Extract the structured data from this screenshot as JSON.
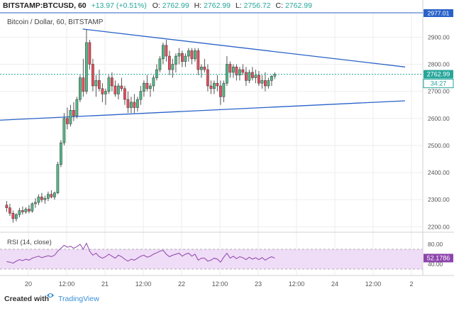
{
  "header": {
    "symbol": "BITSTAMP:BTCUSD, 60",
    "change": "+13.97 (+0.51%)",
    "o_label": "O:",
    "o_value": "2762.99",
    "h_label": "H:",
    "h_value": "2762.99",
    "l_label": "L:",
    "l_value": "2756.72",
    "c_label": "C:",
    "c_value": "2762.99"
  },
  "legend_title": "Bitcoin / Dollar, 60, BITSTAMP",
  "last_price_label": "2762.99",
  "countdown_label": "34:27",
  "top_price_label": "2977.01",
  "rsi": {
    "label": "RSI (14, close)",
    "value_label": "52.1786"
  },
  "footer": {
    "created_with": "Created with",
    "brand": "TradingView"
  },
  "colors": {
    "up": "#53b987",
    "down": "#eb4d5c",
    "trendline": "#2962c8",
    "last_price": "#26a69a",
    "rsi_line": "#8e44ad",
    "rsi_band": "#efdcf6",
    "axis_text": "#555555",
    "grid": "#eeeeee",
    "top_price": "#2962c8"
  },
  "chart_data": [
    {
      "type": "candlestick",
      "title": "Bitcoin / Dollar, 60, BITSTAMP",
      "y_ticks": [
        2200,
        2300,
        2400,
        2500,
        2600,
        2700,
        2800,
        2900
      ],
      "ylim": [
        2180,
        2990
      ],
      "x_ticks": [
        {
          "label": "20",
          "pos": 0
        },
        {
          "label": "12:00",
          "pos": 12
        },
        {
          "label": "21",
          "pos": 24
        },
        {
          "label": "12:00",
          "pos": 36
        },
        {
          "label": "22",
          "pos": 48
        },
        {
          "label": "12:00",
          "pos": 60
        },
        {
          "label": "23",
          "pos": 72
        },
        {
          "label": "12:00",
          "pos": 84
        },
        {
          "label": "24",
          "pos": 96
        },
        {
          "label": "12:00",
          "pos": 108
        },
        {
          "label": "2",
          "pos": 120
        }
      ],
      "trendlines": [
        {
          "name": "resistance",
          "points": [
            [
              25,
              2930
            ],
            [
              126,
              2790
            ]
          ]
        },
        {
          "name": "support",
          "points": [
            [
              -7,
              2590
            ],
            [
              126,
              2665
            ]
          ]
        }
      ],
      "last_price": 2762.99,
      "candles": [
        [
          2280,
          2295,
          2255,
          2270
        ],
        [
          2270,
          2285,
          2240,
          2250
        ],
        [
          2250,
          2260,
          2215,
          2230
        ],
        [
          2230,
          2250,
          2220,
          2245
        ],
        [
          2245,
          2270,
          2235,
          2260
        ],
        [
          2260,
          2275,
          2245,
          2255
        ],
        [
          2255,
          2272,
          2248,
          2265
        ],
        [
          2265,
          2280,
          2250,
          2258
        ],
        [
          2258,
          2290,
          2252,
          2285
        ],
        [
          2285,
          2305,
          2270,
          2290
        ],
        [
          2290,
          2320,
          2280,
          2310
        ],
        [
          2310,
          2325,
          2290,
          2300
        ],
        [
          2300,
          2315,
          2285,
          2305
        ],
        [
          2305,
          2330,
          2295,
          2320
        ],
        [
          2320,
          2335,
          2305,
          2310
        ],
        [
          2310,
          2330,
          2300,
          2325
        ],
        [
          2325,
          2440,
          2320,
          2430
        ],
        [
          2430,
          2520,
          2420,
          2510
        ],
        [
          2510,
          2620,
          2500,
          2600
        ],
        [
          2600,
          2640,
          2560,
          2580
        ],
        [
          2580,
          2650,
          2570,
          2630
        ],
        [
          2630,
          2660,
          2590,
          2610
        ],
        [
          2610,
          2680,
          2600,
          2670
        ],
        [
          2670,
          2760,
          2660,
          2750
        ],
        [
          2750,
          2820,
          2680,
          2700
        ],
        [
          2700,
          2930,
          2690,
          2880
        ],
        [
          2880,
          2890,
          2780,
          2800
        ],
        [
          2800,
          2820,
          2700,
          2720
        ],
        [
          2720,
          2760,
          2680,
          2740
        ],
        [
          2740,
          2780,
          2700,
          2710
        ],
        [
          2710,
          2730,
          2660,
          2690
        ],
        [
          2690,
          2710,
          2650,
          2700
        ],
        [
          2700,
          2760,
          2690,
          2750
        ],
        [
          2750,
          2770,
          2700,
          2720
        ],
        [
          2720,
          2740,
          2680,
          2690
        ],
        [
          2690,
          2730,
          2670,
          2720
        ],
        [
          2720,
          2750,
          2700,
          2710
        ],
        [
          2710,
          2720,
          2650,
          2670
        ],
        [
          2670,
          2700,
          2620,
          2640
        ],
        [
          2640,
          2680,
          2620,
          2660
        ],
        [
          2660,
          2690,
          2620,
          2640
        ],
        [
          2640,
          2680,
          2625,
          2670
        ],
        [
          2670,
          2720,
          2650,
          2700
        ],
        [
          2700,
          2740,
          2680,
          2730
        ],
        [
          2730,
          2760,
          2700,
          2710
        ],
        [
          2710,
          2730,
          2680,
          2720
        ],
        [
          2720,
          2760,
          2700,
          2750
        ],
        [
          2750,
          2800,
          2740,
          2780
        ],
        [
          2780,
          2830,
          2770,
          2820
        ],
        [
          2820,
          2880,
          2800,
          2870
        ],
        [
          2870,
          2890,
          2810,
          2830
        ],
        [
          2830,
          2850,
          2760,
          2780
        ],
        [
          2780,
          2820,
          2750,
          2800
        ],
        [
          2800,
          2840,
          2770,
          2830
        ],
        [
          2830,
          2860,
          2800,
          2840
        ],
        [
          2840,
          2850,
          2790,
          2810
        ],
        [
          2810,
          2840,
          2790,
          2830
        ],
        [
          2830,
          2860,
          2810,
          2850
        ],
        [
          2850,
          2860,
          2800,
          2820
        ],
        [
          2820,
          2860,
          2810,
          2850
        ],
        [
          2850,
          2860,
          2760,
          2780
        ],
        [
          2780,
          2800,
          2750,
          2790
        ],
        [
          2790,
          2820,
          2770,
          2780
        ],
        [
          2780,
          2800,
          2700,
          2720
        ],
        [
          2720,
          2740,
          2690,
          2710
        ],
        [
          2710,
          2740,
          2690,
          2730
        ],
        [
          2730,
          2760,
          2700,
          2720
        ],
        [
          2720,
          2740,
          2650,
          2680
        ],
        [
          2680,
          2740,
          2660,
          2730
        ],
        [
          2730,
          2830,
          2720,
          2800
        ],
        [
          2800,
          2810,
          2750,
          2770
        ],
        [
          2770,
          2800,
          2750,
          2790
        ],
        [
          2790,
          2800,
          2740,
          2760
        ],
        [
          2760,
          2790,
          2740,
          2780
        ],
        [
          2780,
          2800,
          2760,
          2770
        ],
        [
          2770,
          2790,
          2720,
          2740
        ],
        [
          2740,
          2780,
          2730,
          2770
        ],
        [
          2770,
          2790,
          2740,
          2750
        ],
        [
          2750,
          2780,
          2730,
          2760
        ],
        [
          2760,
          2775,
          2720,
          2730
        ],
        [
          2730,
          2760,
          2710,
          2740
        ],
        [
          2740,
          2770,
          2700,
          2720
        ],
        [
          2720,
          2750,
          2710,
          2740
        ],
        [
          2740,
          2760,
          2720,
          2756
        ],
        [
          2756,
          2770,
          2745,
          2763
        ]
      ]
    },
    {
      "type": "line",
      "title": "RSI (14, close)",
      "y_ticks": [
        40,
        80
      ],
      "ylim": [
        20,
        100
      ],
      "band": [
        30,
        70
      ],
      "last_value": 52.1786,
      "values": [
        45,
        44,
        42,
        46,
        49,
        47,
        50,
        48,
        52,
        54,
        56,
        53,
        55,
        57,
        55,
        58,
        66,
        72,
        78,
        74,
        76,
        72,
        75,
        80,
        70,
        82,
        66,
        58,
        62,
        55,
        52,
        55,
        60,
        56,
        52,
        58,
        55,
        50,
        46,
        50,
        48,
        52,
        56,
        58,
        54,
        56,
        60,
        63,
        66,
        68,
        60,
        55,
        58,
        60,
        62,
        56,
        60,
        62,
        56,
        60,
        48,
        52,
        52,
        46,
        48,
        52,
        50,
        44,
        54,
        62,
        52,
        56,
        51,
        55,
        53,
        49,
        54,
        50,
        53,
        49,
        53,
        48,
        52,
        55,
        52
      ]
    }
  ]
}
